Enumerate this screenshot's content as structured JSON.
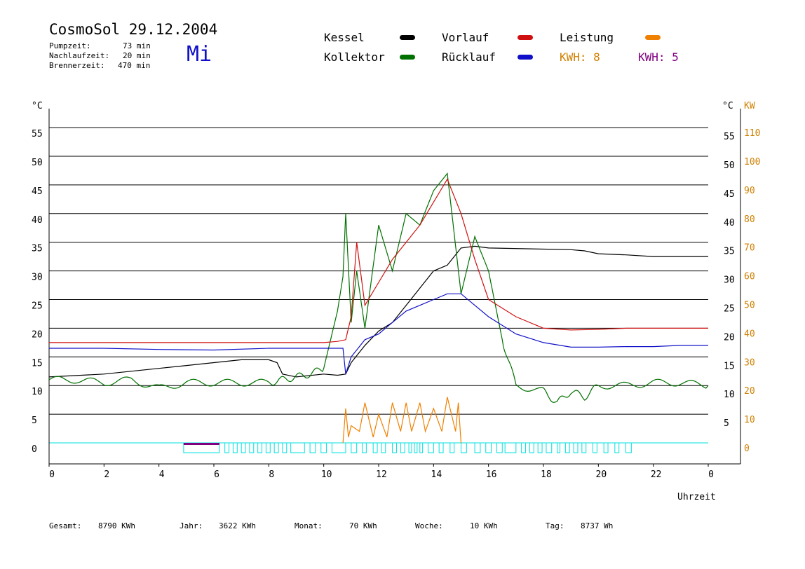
{
  "header": {
    "title": "CosmoSol 29.12.2004",
    "weekday": "Mi",
    "stats": [
      {
        "label": "Pumpzeit:",
        "value": "73 min"
      },
      {
        "label": "Nachlaufzeit:",
        "value": "20 min"
      },
      {
        "label": "Brennerzeit:",
        "value": "470 min"
      }
    ]
  },
  "legend": {
    "kessel": "Kessel",
    "kollektor": "Kollektor",
    "vorlauf": "Vorlauf",
    "ruecklauf": "Rücklauf",
    "leistung": "Leistung",
    "kwh_orange": "KWH: 8",
    "kwh_purple": "KWH: 5"
  },
  "colors": {
    "kessel": "#000000",
    "kollektor": "#007000",
    "vorlauf": "#d01010",
    "ruecklauf": "#1010c8",
    "leistung": "#f08000",
    "leistung2": "#800080",
    "pump": "#00e0e0",
    "kwh_orange_text": "#d08000",
    "kwh_purple_text": "#800080"
  },
  "footer": [
    {
      "label": "Gesamt:",
      "value": "8790 KWh"
    },
    {
      "label": "Jahr:",
      "value": "3622 KWh"
    },
    {
      "label": "Monat:",
      "value": "70 KWh"
    },
    {
      "label": "Woche:",
      "value": "10 KWh"
    },
    {
      "label": "Tag:",
      "value": "8737 Wh"
    }
  ],
  "chart_data": {
    "type": "line",
    "xlabel": "Uhrzeit",
    "ylabel_left": "°C",
    "ylabel_right": "°C",
    "ylabel_right2": "KW",
    "x_ticks": [
      "0",
      "2",
      "4",
      "6",
      "8",
      "10",
      "12",
      "14",
      "16",
      "18",
      "20",
      "22",
      "0"
    ],
    "y_ticks_left": [
      "0",
      "5",
      "10",
      "15",
      "20",
      "25",
      "30",
      "35",
      "40",
      "45",
      "50",
      "55"
    ],
    "y_ticks_right": [
      "5",
      "10",
      "15",
      "20",
      "25",
      "30",
      "35",
      "40",
      "45",
      "50",
      "55"
    ],
    "y_ticks_right2": [
      "0",
      "10",
      "20",
      "30",
      "40",
      "50",
      "60",
      "70",
      "80",
      "90",
      "100",
      "110"
    ],
    "xlim": [
      0,
      24
    ],
    "ylim": [
      -4,
      58
    ],
    "series": [
      {
        "name": "Kessel",
        "x": [
          0,
          2,
          4,
          6,
          7,
          8,
          8.3,
          8.5,
          9,
          10,
          10.5,
          10.8,
          11,
          11.5,
          12,
          12.5,
          13,
          13.5,
          14,
          14.5,
          15,
          15.5,
          16,
          18,
          19,
          19.5,
          20,
          21,
          22,
          23,
          24
        ],
        "y": [
          11.5,
          12,
          13,
          14,
          14.5,
          14.5,
          14,
          12,
          11.5,
          12,
          11.8,
          12,
          14,
          17,
          19.5,
          21,
          24,
          27,
          30,
          31,
          34,
          34.3,
          34,
          33.8,
          33.7,
          33.5,
          33,
          32.8,
          32.5,
          32.5,
          32.5
        ]
      },
      {
        "name": "Kollektor",
        "x": [
          0,
          1,
          2,
          3,
          4,
          5,
          6,
          7,
          8,
          8.5,
          9,
          9.5,
          10,
          10.5,
          10.7,
          10.8,
          11,
          11.2,
          11.5,
          12,
          12.5,
          13,
          13.5,
          14,
          14.5,
          15,
          15.5,
          16,
          16.5,
          17,
          18,
          18.5,
          19,
          19.5,
          20,
          21,
          22,
          23,
          24
        ],
        "y": [
          11,
          11,
          10.5,
          11,
          9.5,
          10.5,
          10.5,
          10.5,
          10.5,
          11,
          11.5,
          12,
          13,
          23,
          29,
          40,
          21,
          30,
          20,
          38,
          30,
          40,
          38,
          44,
          47,
          26,
          36,
          30,
          18,
          10,
          9,
          7,
          9,
          8,
          10,
          10,
          10.5,
          10.5,
          10
        ]
      },
      {
        "name": "Vorlauf",
        "x": [
          0,
          2,
          4,
          6,
          8,
          10,
          10.5,
          10.8,
          11,
          11.2,
          11.5,
          12,
          12.5,
          13,
          13.5,
          14,
          14.5,
          15,
          15.5,
          16,
          17,
          18,
          19,
          20,
          21,
          22,
          23,
          24
        ],
        "y": [
          17.5,
          17.5,
          17.5,
          17.5,
          17.5,
          17.5,
          17.7,
          18,
          22,
          35,
          24,
          28,
          32,
          35,
          38,
          42,
          46,
          40,
          32,
          25,
          22,
          20,
          19.7,
          19.8,
          20,
          20,
          20,
          20
        ]
      },
      {
        "name": "Rücklauf",
        "x": [
          0,
          2,
          4,
          6,
          8,
          10,
          10.7,
          10.8,
          11,
          11.5,
          12,
          12.5,
          13,
          13.5,
          14,
          14.5,
          15,
          15.5,
          16,
          17,
          18,
          19,
          20,
          21,
          22,
          23,
          24
        ],
        "y": [
          16.5,
          16.5,
          16.3,
          16.2,
          16.5,
          16.5,
          16.5,
          12,
          15,
          18,
          19,
          21,
          23,
          24,
          25,
          26,
          26,
          24,
          22,
          19,
          17.5,
          16.7,
          16.7,
          16.8,
          16.8,
          17,
          17
        ]
      },
      {
        "name": "Leistung",
        "x": [
          10.7,
          10.8,
          10.9,
          11,
          11.3,
          11.5,
          11.8,
          12,
          12.3,
          12.5,
          12.8,
          13,
          13.2,
          13.5,
          13.7,
          14,
          14.3,
          14.5,
          14.8,
          14.9,
          15
        ],
        "y": [
          0,
          6,
          1,
          3,
          2,
          7,
          1,
          5,
          1,
          7,
          2,
          7,
          2,
          7,
          2,
          6,
          2,
          8,
          2,
          7,
          0
        ]
      }
    ]
  }
}
